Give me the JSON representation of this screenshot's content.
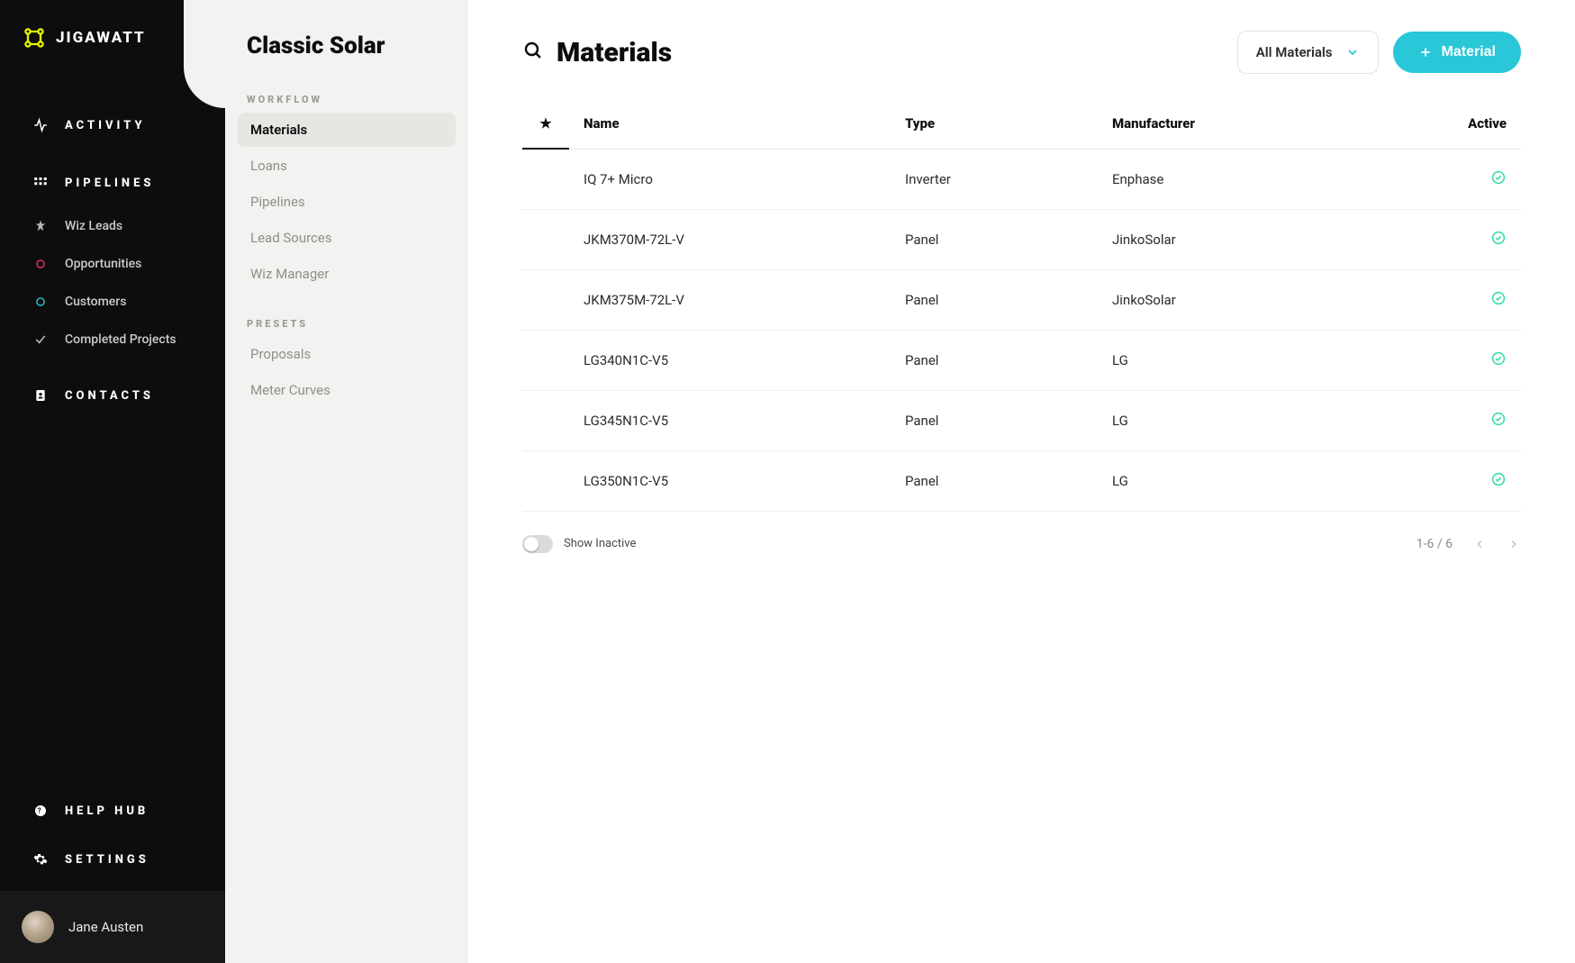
{
  "brand": {
    "name": "JIGAWATT"
  },
  "leftnav": {
    "sections": [
      {
        "type": "heading",
        "label": "ACTIVITY",
        "icon": "activity"
      },
      {
        "type": "heading",
        "label": "PIPELINES",
        "icon": "pipelines"
      },
      {
        "type": "item",
        "label": "Wiz Leads",
        "icon": "wizard"
      },
      {
        "type": "item",
        "label": "Opportunities",
        "icon": "circle-pink"
      },
      {
        "type": "item",
        "label": "Customers",
        "icon": "circle-teal"
      },
      {
        "type": "item",
        "label": "Completed Projects",
        "icon": "check"
      },
      {
        "type": "heading",
        "label": "CONTACTS",
        "icon": "contacts"
      }
    ],
    "footer": [
      {
        "label": "HELP HUB",
        "icon": "help"
      },
      {
        "label": "SETTINGS",
        "icon": "gear"
      }
    ],
    "user": {
      "name": "Jane Austen"
    }
  },
  "subnav": {
    "title": "Classic Solar",
    "groups": [
      {
        "label": "WORKFLOW",
        "items": [
          {
            "label": "Materials",
            "active": true
          },
          {
            "label": "Loans"
          },
          {
            "label": "Pipelines"
          },
          {
            "label": "Lead Sources"
          },
          {
            "label": "Wiz Manager"
          }
        ]
      },
      {
        "label": "PRESETS",
        "items": [
          {
            "label": "Proposals"
          },
          {
            "label": "Meter Curves"
          }
        ]
      }
    ]
  },
  "page": {
    "title": "Materials",
    "filter": {
      "selected": "All Materials"
    },
    "create_button": "Material",
    "columns": [
      "",
      "Name",
      "Type",
      "Manufacturer",
      "Active"
    ],
    "rows": [
      {
        "name": "IQ 7+ Micro",
        "type": "Inverter",
        "manufacturer": "Enphase",
        "active": true
      },
      {
        "name": "JKM370M-72L-V",
        "type": "Panel",
        "manufacturer": "JinkoSolar",
        "active": true
      },
      {
        "name": "JKM375M-72L-V",
        "type": "Panel",
        "manufacturer": "JinkoSolar",
        "active": true
      },
      {
        "name": "LG340N1C-V5",
        "type": "Panel",
        "manufacturer": "LG",
        "active": true
      },
      {
        "name": "LG345N1C-V5",
        "type": "Panel",
        "manufacturer": "LG",
        "active": true
      },
      {
        "name": "LG350N1C-V5",
        "type": "Panel",
        "manufacturer": "LG",
        "active": true
      }
    ],
    "show_inactive_label": "Show Inactive",
    "pagination": {
      "range": "1-6 / 6"
    }
  },
  "colors": {
    "accent": "#2ac7d8",
    "brand_yellow": "#e6f200",
    "pink": "#e0317e",
    "teal": "#28c6d6",
    "check_green": "#2fd9a4"
  }
}
